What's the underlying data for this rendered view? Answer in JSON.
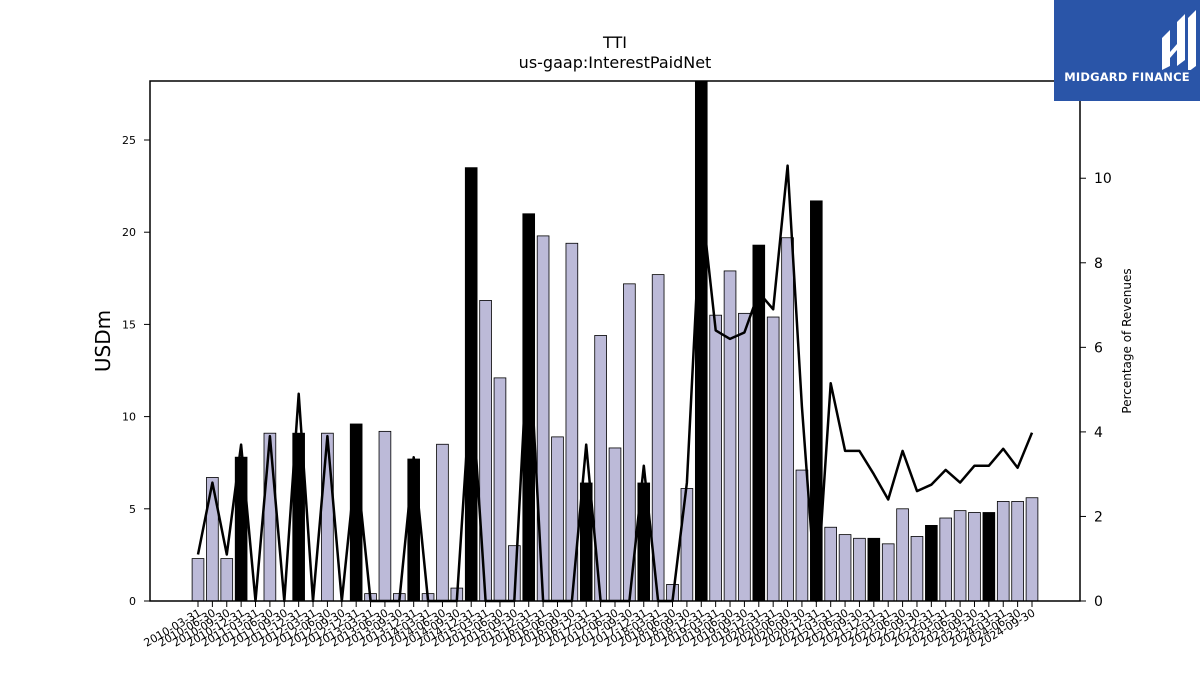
{
  "brand": {
    "logo_text": "MIDGARD FINANCE"
  },
  "chart_data": {
    "type": "bar+line",
    "title": "TTI",
    "subtitle": "us-gaap:InterestPaidNet",
    "ylabel": "USDm",
    "y2label": "Percentage of Revenues",
    "ylim": [
      0,
      28.2
    ],
    "y2lim": [
      0,
      12.3
    ],
    "yticks": [
      0,
      5,
      10,
      15,
      20,
      25
    ],
    "y2ticks": [
      0,
      2,
      4,
      6,
      8,
      10
    ],
    "categories": [
      "2010-03-31",
      "2010-06-30",
      "2010-09-30",
      "2010-12-31",
      "2011-03-31",
      "2011-06-30",
      "2011-09-30",
      "2011-12-31",
      "2012-03-31",
      "2012-06-30",
      "2012-09-30",
      "2012-12-31",
      "2013-03-31",
      "2013-06-30",
      "2013-09-30",
      "2013-12-31",
      "2014-03-31",
      "2014-06-30",
      "2014-09-30",
      "2014-12-31",
      "2015-03-31",
      "2015-06-30",
      "2015-09-30",
      "2015-12-31",
      "2016-03-31",
      "2016-06-30",
      "2016-09-30",
      "2016-12-31",
      "2017-03-31",
      "2017-06-30",
      "2017-09-30",
      "2017-12-31",
      "2018-03-31",
      "2018-06-30",
      "2018-09-30",
      "2018-12-31",
      "2019-03-31",
      "2019-06-30",
      "2019-09-30",
      "2019-12-31",
      "2020-03-31",
      "2020-06-30",
      "2020-09-30",
      "2020-12-31",
      "2021-03-31",
      "2021-06-30",
      "2021-09-30",
      "2021-12-31",
      "2022-03-31",
      "2022-06-30",
      "2022-09-30",
      "2022-12-31",
      "2023-03-31",
      "2023-06-30",
      "2023-09-30",
      "2023-12-31",
      "2024-03-31",
      "2024-06-30",
      "2024-09-30"
    ],
    "series": [
      {
        "kind": "bar",
        "unit": "USDm",
        "values": [
          2.3,
          6.7,
          2.3,
          7.8,
          0,
          9.1,
          0,
          9.1,
          0,
          9.1,
          0,
          9.6,
          0.4,
          9.2,
          0.4,
          7.7,
          0.4,
          8.5,
          0.7,
          23.5,
          16.3,
          12.1,
          3.0,
          21.0,
          19.8,
          8.9,
          19.4,
          6.4,
          14.4,
          8.3,
          17.2,
          6.4,
          17.7,
          0.9,
          6.1,
          28.2,
          15.5,
          17.9,
          15.6,
          19.3,
          15.4,
          19.7,
          7.1,
          21.7,
          4.0,
          3.6,
          3.4,
          3.4,
          3.1,
          5.0,
          3.5,
          4.1,
          4.5,
          4.9,
          4.8,
          4.8,
          5.4,
          5.4,
          5.6
        ],
        "highlight": [
          false,
          false,
          false,
          true,
          false,
          false,
          false,
          true,
          false,
          false,
          false,
          true,
          false,
          false,
          false,
          true,
          false,
          false,
          false,
          true,
          false,
          false,
          false,
          true,
          false,
          false,
          false,
          true,
          false,
          false,
          false,
          true,
          false,
          false,
          false,
          true,
          false,
          false,
          false,
          true,
          false,
          false,
          false,
          true,
          false,
          false,
          false,
          true,
          false,
          false,
          false,
          true,
          false,
          false,
          false,
          true,
          false,
          false,
          false
        ]
      },
      {
        "kind": "line",
        "unit": "Percentage of Revenues",
        "values": [
          1.1,
          2.8,
          1.1,
          3.7,
          0,
          3.9,
          0,
          4.9,
          0,
          3.9,
          0,
          3.3,
          0,
          0,
          0,
          3.4,
          0,
          0,
          0,
          5.2,
          0,
          0,
          0,
          6.4,
          0,
          0,
          0,
          3.7,
          0,
          0,
          0,
          3.2,
          0,
          0,
          2.8,
          9.5,
          6.4,
          6.2,
          6.35,
          7.3,
          6.9,
          10.3,
          4.6,
          0,
          5.15,
          3.55,
          3.55,
          3.0,
          2.4,
          3.55,
          2.6,
          2.75,
          3.1,
          2.8,
          3.2,
          3.2,
          3.6,
          3.15,
          3.98
        ]
      }
    ],
    "colors": {
      "bar": "#bcbad8",
      "bar_highlight": "#000000",
      "line": "#000000"
    },
    "grid": false,
    "legend": "none"
  }
}
